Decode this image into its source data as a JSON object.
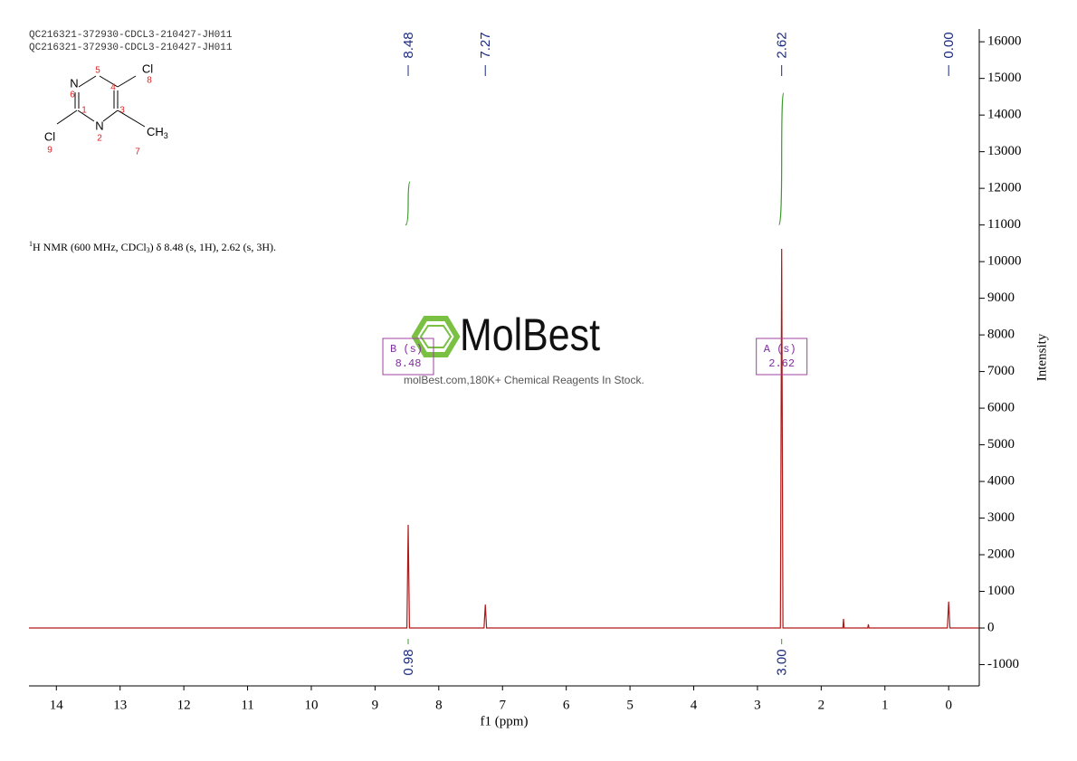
{
  "header": [
    "QC216321-372930-CDCL3-210427-JH011",
    "QC216321-372930-CDCL3-210427-JH011"
  ],
  "structure": {
    "atoms": [
      "N",
      "Cl",
      "Cl",
      "N"
    ],
    "methyl": [
      "CH",
      "3"
    ],
    "numbers": [
      "5",
      "4",
      "8",
      "6",
      "1",
      "3",
      "9",
      "2",
      "7"
    ]
  },
  "description": [
    "1",
    "H NMR (600 MHz, CDCl",
    "3",
    ") δ 8.48 (s, 1H), 2.62 (s, 3H)."
  ],
  "watermark": {
    "brand": "MolBest",
    "tagline": "molBest.com,180K+ Chemical Reagents In Stock."
  },
  "chart_data": {
    "type": "line",
    "color": "#b01818",
    "x": [
      14.43,
      8.5,
      8.48,
      8.46,
      7.29,
      7.27,
      7.25,
      2.64,
      2.62,
      2.6,
      1.66,
      1.65,
      1.64,
      1.27,
      1.26,
      1.25,
      0.02,
      0,
      -0.02,
      -0.48
    ],
    "values": [
      0,
      0,
      2815,
      0,
      0,
      640,
      0,
      0,
      10350,
      0,
      0,
      250,
      0,
      0,
      100,
      0,
      0,
      720,
      0,
      0
    ],
    "xlim": [
      14.43,
      -0.48
    ],
    "xticks": [
      14,
      13,
      12,
      11,
      10,
      9,
      8,
      7,
      6,
      5,
      4,
      3,
      2,
      1,
      0
    ],
    "xlabel": "f1 (ppm)",
    "ylim": [
      -1580,
      16350
    ],
    "yticks": [
      -1000,
      0,
      1000,
      2000,
      3000,
      4000,
      5000,
      6000,
      7000,
      8000,
      9000,
      10000,
      11000,
      12000,
      13000,
      14000,
      15000,
      16000
    ],
    "ylabel": "Intensity",
    "peak_labels": [
      8.48,
      7.27,
      2.62,
      {
        "value": 0,
        "label": "0.00"
      }
    ],
    "integrals": {
      "positions": [
        8.48,
        2.62
      ],
      "values": [
        0.98,
        3
      ],
      "value_labels": [
        "0.98",
        "3.00"
      ],
      "color": "#3a9a2a"
    },
    "multiplets": [
      {
        "name": "B (s)",
        "shift": 8.48
      },
      {
        "name": "A (s)",
        "shift": 2.62
      }
    ]
  }
}
